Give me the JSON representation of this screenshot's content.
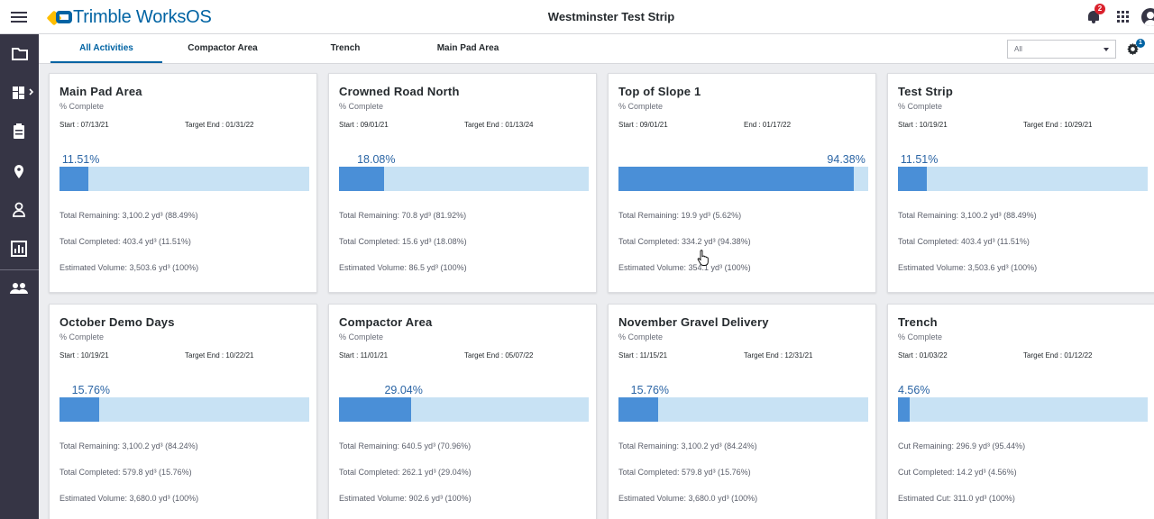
{
  "app": {
    "brand": "Trimble WorksOS",
    "project_title": "Westminster Test Strip",
    "notification_count": "2"
  },
  "icons": {
    "hamburger": "menu-icon",
    "bell": "bell-icon",
    "apps": "apps-grid-icon",
    "user": "user-account-icon",
    "gear": "gear-icon"
  },
  "sidebar": {
    "items": [
      {
        "icon": "folder-icon"
      },
      {
        "icon": "dashboard-icon"
      },
      {
        "icon": "clipboard-icon"
      },
      {
        "icon": "location-pin-icon"
      },
      {
        "icon": "person-icon"
      },
      {
        "icon": "chart-icon"
      },
      {
        "icon": "people-icon"
      }
    ]
  },
  "tabs": [
    {
      "label": "All Activities",
      "active": true
    },
    {
      "label": "Compactor Area",
      "active": false
    },
    {
      "label": "Trench",
      "active": false
    },
    {
      "label": "Main Pad Area",
      "active": false
    }
  ],
  "filter": {
    "value": "All"
  },
  "settings_badge": "1",
  "colors": {
    "brand_blue": "#0063a3",
    "brand_yellow": "#ffbe00",
    "sidebar_bg": "#363545",
    "bar_fill": "#4a8fd7",
    "bar_track": "#c8e2f4",
    "badge_red": "#da212c"
  },
  "cards": [
    {
      "title": "Main Pad Area",
      "subtitle": "% Complete",
      "start": "Start : 07/13/21",
      "end": "Target End : 01/31/22",
      "percent_label": "11.51%",
      "percent": 11.51,
      "stat1": "Total Remaining: 3,100.2 yd³ (88.49%)",
      "stat2": "Total Completed: 403.4 yd³ (11.51%)",
      "stat3": "Estimated Volume: 3,503.6 yd³ (100%)"
    },
    {
      "title": "Crowned Road North",
      "subtitle": "% Complete",
      "start": "Start : 09/01/21",
      "end": "Target End : 01/13/24",
      "percent_label": "18.08%",
      "percent": 18.08,
      "stat1": "Total Remaining: 70.8 yd³ (81.92%)",
      "stat2": "Total Completed: 15.6 yd³ (18.08%)",
      "stat3": "Estimated Volume: 86.5 yd³ (100%)"
    },
    {
      "title": "Top of Slope 1",
      "subtitle": "% Complete",
      "start": "Start : 09/01/21",
      "end": "End : 01/17/22",
      "percent_label": "94.38%",
      "percent": 94.38,
      "stat1": "Total Remaining: 19.9 yd³ (5.62%)",
      "stat2": "Total Completed: 334.2 yd³ (94.38%)",
      "stat3": "Estimated Volume: 354.1 yd³ (100%)"
    },
    {
      "title": "Test Strip",
      "subtitle": "% Complete",
      "start": "Start : 10/19/21",
      "end": "Target End : 10/29/21",
      "percent_label": "11.51%",
      "percent": 11.51,
      "stat1": "Total Remaining: 3,100.2 yd³ (88.49%)",
      "stat2": "Total Completed: 403.4 yd³ (11.51%)",
      "stat3": "Estimated Volume: 3,503.6 yd³ (100%)"
    },
    {
      "title": "October Demo Days",
      "subtitle": "% Complete",
      "start": "Start : 10/19/21",
      "end": "Target End : 10/22/21",
      "percent_label": "15.76%",
      "percent": 15.76,
      "stat1": "Total Remaining: 3,100.2 yd³ (84.24%)",
      "stat2": "Total Completed: 579.8 yd³ (15.76%)",
      "stat3": "Estimated Volume: 3,680.0 yd³ (100%)"
    },
    {
      "title": "Compactor Area",
      "subtitle": "% Complete",
      "start": "Start : 11/01/21",
      "end": "Target End : 05/07/22",
      "percent_label": "29.04%",
      "percent": 29.04,
      "stat1": "Total Remaining: 640.5 yd³ (70.96%)",
      "stat2": "Total Completed: 262.1 yd³ (29.04%)",
      "stat3": "Estimated Volume: 902.6 yd³ (100%)"
    },
    {
      "title": "November Gravel Delivery",
      "subtitle": "% Complete",
      "start": "Start : 11/15/21",
      "end": "Target End : 12/31/21",
      "percent_label": "15.76%",
      "percent": 15.76,
      "stat1": "Total Remaining: 3,100.2 yd³ (84.24%)",
      "stat2": "Total Completed: 579.8 yd³ (15.76%)",
      "stat3": "Estimated Volume: 3,680.0 yd³ (100%)"
    },
    {
      "title": "Trench",
      "subtitle": "% Complete",
      "start": "Start : 01/03/22",
      "end": "Target End : 01/12/22",
      "percent_label": "4.56%",
      "percent": 4.56,
      "stat1": "Cut Remaining: 296.9 yd³ (95.44%)",
      "stat2": "Cut Completed: 14.2 yd³ (4.56%)",
      "stat3": "Estimated Cut: 311.0 yd³ (100%)"
    }
  ]
}
